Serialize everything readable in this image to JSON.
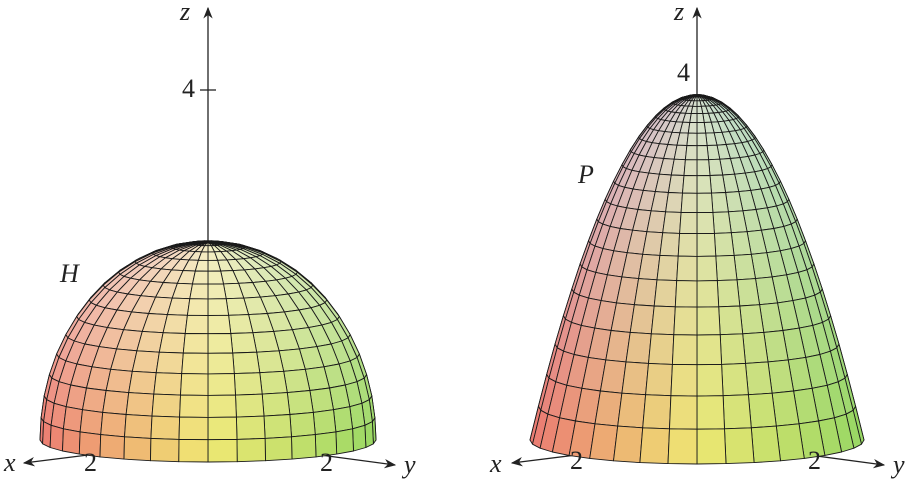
{
  "figures": [
    {
      "surface_label": "H",
      "axis_labels": {
        "x": "x",
        "y": "y",
        "z": "z"
      },
      "tick_labels": {
        "x": "2",
        "y": "2",
        "z": "4"
      }
    },
    {
      "surface_label": "P",
      "axis_labels": {
        "x": "x",
        "y": "y",
        "z": "z"
      },
      "tick_labels": {
        "x": "2",
        "y": "2",
        "z": "4"
      }
    }
  ]
}
